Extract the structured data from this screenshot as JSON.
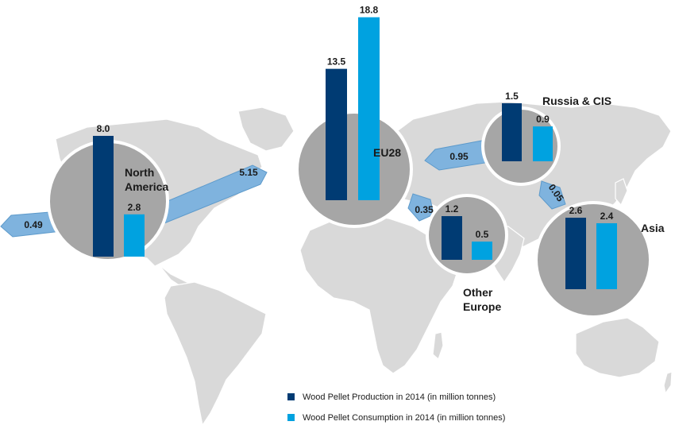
{
  "chart_data": {
    "type": "bar",
    "series": [
      {
        "name": "Wood Pellet Production in 2014 (in million tonnes)",
        "color": "#003b73"
      },
      {
        "name": "Wood Pellet Consumption in 2014 (in million tonnes)",
        "color": "#00a2e0"
      }
    ],
    "regions": [
      {
        "name": "North America",
        "line1": "North",
        "line2": "America",
        "production": 8.0,
        "consumption": 2.8,
        "production_label": "8.0",
        "consumption_label": "2.8"
      },
      {
        "name": "EU28",
        "line1": "EU28",
        "line2": "",
        "production": 13.5,
        "consumption": 18.8,
        "production_label": "13.5",
        "consumption_label": "18.8"
      },
      {
        "name": "Russia & CIS",
        "line1": "Russia & CIS",
        "line2": "",
        "production": 1.5,
        "consumption": 0.9,
        "production_label": "1.5",
        "consumption_label": "0.9"
      },
      {
        "name": "Other Europe",
        "line1": "Other",
        "line2": "Europe",
        "production": 1.2,
        "consumption": 0.5,
        "production_label": "1.2",
        "consumption_label": "0.5"
      },
      {
        "name": "Asia",
        "line1": "Asia",
        "line2": "",
        "production": 2.6,
        "consumption": 2.4,
        "production_label": "2.6",
        "consumption_label": "2.4"
      }
    ],
    "flows": [
      {
        "label": "0.49"
      },
      {
        "label": "5.15"
      },
      {
        "label": "0.95"
      },
      {
        "label": "0.35"
      },
      {
        "label": "0.05"
      }
    ]
  },
  "legend": {
    "production": "Wood Pellet Production in 2014 (in million tonnes)",
    "consumption": "Wood Pellet Consumption in 2014 (in million tonnes)"
  }
}
